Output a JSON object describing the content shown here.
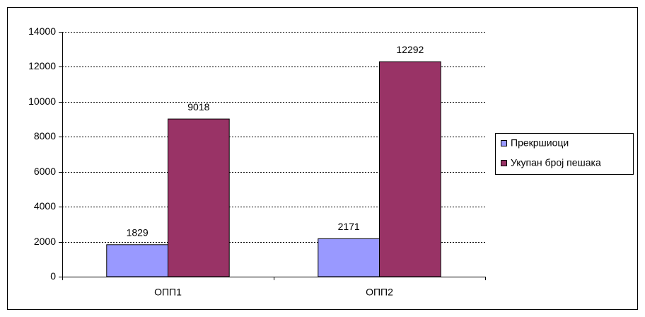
{
  "chart_data": {
    "type": "bar",
    "categories": [
      "ОПП1",
      "ОПП2"
    ],
    "series": [
      {
        "name": "Прекршиоци",
        "color": "#9999ff",
        "values": [
          1829,
          2171
        ]
      },
      {
        "name": "Укупан број пешака",
        "color": "#993366",
        "values": [
          9018,
          12292
        ]
      }
    ],
    "ylim": [
      0,
      14000
    ],
    "yticks": [
      0,
      2000,
      4000,
      6000,
      8000,
      10000,
      12000,
      14000
    ],
    "grid": true,
    "legend": "right"
  }
}
